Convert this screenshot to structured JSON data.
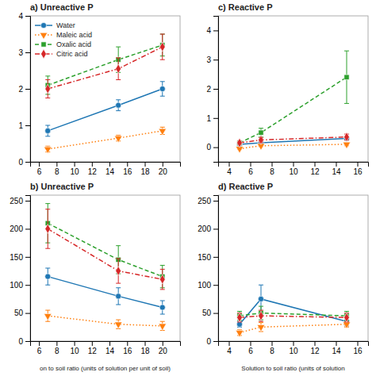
{
  "chart_data": [
    {
      "type": "line",
      "title": "a) Unreactive P",
      "x": [
        7,
        15,
        20
      ],
      "series": [
        {
          "name": "Water",
          "values": [
            0.85,
            1.55,
            2.0
          ],
          "errors": [
            0.15,
            0.15,
            0.2
          ],
          "marker": "circle",
          "line_style": "solid"
        },
        {
          "name": "Maleic acid",
          "values": [
            0.35,
            0.65,
            0.85
          ],
          "errors": [
            0.08,
            0.08,
            0.1
          ],
          "marker": "triangle-down",
          "line_style": "dotted"
        },
        {
          "name": "Oxalic acid",
          "values": [
            2.1,
            2.8,
            3.2
          ],
          "errors": [
            0.25,
            0.35,
            0.3
          ],
          "marker": "square",
          "line_style": "dashed"
        },
        {
          "name": "Citric acid",
          "values": [
            2.0,
            2.55,
            3.15
          ],
          "errors": [
            0.25,
            0.3,
            0.35
          ],
          "marker": "diamond",
          "line_style": "dashdot"
        }
      ],
      "xlim": [
        5,
        22
      ],
      "xticks": [
        6,
        8,
        10,
        12,
        14,
        16,
        18,
        20
      ],
      "ylim": [
        0,
        4
      ],
      "yticks": [
        0,
        1,
        2,
        3,
        4
      ],
      "legend": "upper-left"
    },
    {
      "type": "line",
      "title": "b) Unreactive P",
      "x": [
        7,
        15,
        20
      ],
      "series": [
        {
          "values": [
            115,
            80,
            60
          ],
          "errors": [
            15,
            15,
            12
          ],
          "marker": "circle",
          "line_style": "solid"
        },
        {
          "values": [
            45,
            30,
            27
          ],
          "errors": [
            10,
            8,
            8
          ],
          "marker": "triangle-down",
          "line_style": "dotted"
        },
        {
          "values": [
            210,
            145,
            115
          ],
          "errors": [
            35,
            25,
            20
          ],
          "marker": "square",
          "line_style": "dashed"
        },
        {
          "values": [
            200,
            125,
            110
          ],
          "errors": [
            35,
            22,
            18
          ],
          "marker": "diamond",
          "line_style": "dashdot"
        }
      ],
      "xlim": [
        5,
        22
      ],
      "xticks": [
        6,
        8,
        10,
        12,
        14,
        16,
        18,
        20
      ],
      "ylim": [
        0,
        260
      ],
      "yticks": [
        0,
        50,
        100,
        150,
        200,
        250
      ],
      "xlabel": "on to soil ratio (units of solution per unit of soil)"
    },
    {
      "type": "line",
      "title": "c) Reactive P",
      "x": [
        5,
        7,
        15
      ],
      "series": [
        {
          "values": [
            0.1,
            0.15,
            0.3
          ],
          "errors": [
            0.05,
            0.05,
            0.05
          ],
          "marker": "circle",
          "line_style": "solid"
        },
        {
          "values": [
            -0.05,
            0.05,
            0.1
          ],
          "errors": [
            0.03,
            0.03,
            0.05
          ],
          "marker": "triangle-down",
          "line_style": "dotted"
        },
        {
          "values": [
            0.15,
            0.5,
            2.4
          ],
          "errors": [
            0.05,
            0.15,
            0.9
          ],
          "marker": "square",
          "line_style": "dashed"
        },
        {
          "values": [
            0.15,
            0.25,
            0.35
          ],
          "errors": [
            0.05,
            0.08,
            0.1
          ],
          "marker": "diamond",
          "line_style": "dashdot"
        }
      ],
      "xlim": [
        3,
        17
      ],
      "xticks": [
        4,
        6,
        8,
        10,
        12,
        14,
        16
      ],
      "ylim": [
        -0.5,
        4.5
      ],
      "yticks": [
        0,
        1,
        2,
        3,
        4
      ]
    },
    {
      "type": "line",
      "title": "d) Reactive P",
      "x": [
        5,
        7,
        15
      ],
      "series": [
        {
          "values": [
            30,
            75,
            35
          ],
          "errors": [
            5,
            25,
            8
          ],
          "marker": "circle",
          "line_style": "solid"
        },
        {
          "values": [
            15,
            25,
            30
          ],
          "errors": [
            5,
            8,
            5
          ],
          "marker": "triangle-down",
          "line_style": "dotted"
        },
        {
          "values": [
            45,
            50,
            45
          ],
          "errors": [
            8,
            12,
            8
          ],
          "marker": "square",
          "line_style": "dashed"
        },
        {
          "values": [
            42,
            45,
            42
          ],
          "errors": [
            8,
            10,
            8
          ],
          "marker": "diamond",
          "line_style": "dashdot"
        }
      ],
      "xlim": [
        3,
        17
      ],
      "xticks": [
        4,
        6,
        8,
        10,
        12,
        14,
        16
      ],
      "ylim": [
        0,
        260
      ],
      "yticks": [
        0,
        50,
        100,
        150,
        200,
        250
      ],
      "xlabel": "Solution to soil ratio (units of solution"
    }
  ]
}
